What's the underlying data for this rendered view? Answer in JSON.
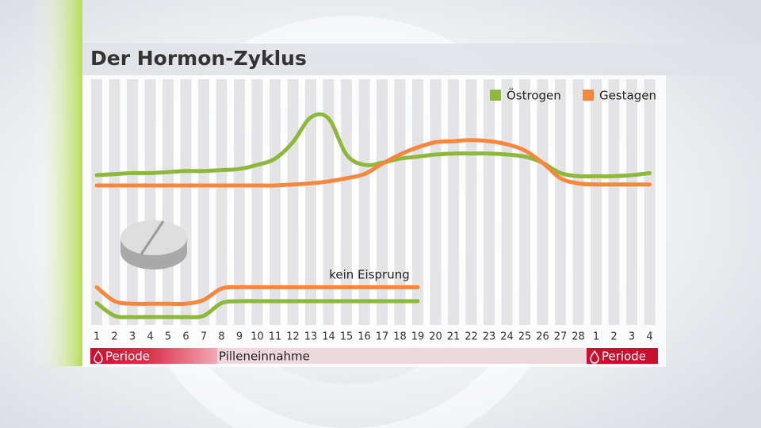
{
  "chart_data": [
    {
      "type": "line",
      "title": "Der Hormon-Zyklus",
      "categories": [
        "1",
        "2",
        "3",
        "4",
        "5",
        "6",
        "7",
        "8",
        "9",
        "10",
        "11",
        "12",
        "13",
        "14",
        "15",
        "16",
        "17",
        "18",
        "19",
        "20",
        "21",
        "22",
        "23",
        "24",
        "25",
        "26",
        "27",
        "28",
        "1",
        "2",
        "3",
        "4"
      ],
      "ylim": [
        0,
        100
      ],
      "series": [
        {
          "name": "Östrogen",
          "color": "#8db83c",
          "values": [
            30,
            31,
            32,
            32,
            33,
            34,
            34,
            35,
            36,
            40,
            46,
            62,
            86,
            85,
            50,
            40,
            42,
            46,
            48,
            50,
            51,
            51,
            51,
            50,
            48,
            42,
            32,
            29,
            29,
            29,
            30,
            32
          ]
        },
        {
          "name": "Gestagen",
          "color": "#f5873f",
          "values": [
            20,
            20,
            20,
            20,
            20,
            20,
            20,
            20,
            20,
            20,
            20,
            21,
            22,
            24,
            27,
            31,
            41,
            50,
            57,
            62,
            63,
            64,
            63,
            60,
            54,
            42,
            27,
            22,
            21,
            21,
            21,
            21
          ]
        }
      ]
    },
    {
      "type": "line",
      "annotation": "kein Eisprung",
      "ylim": [
        0,
        100
      ],
      "series": [
        {
          "color": "#f5873f",
          "values": [
            72,
            50,
            46,
            46,
            46,
            46,
            52,
            70,
            72,
            72,
            72,
            72,
            72,
            72,
            72,
            72,
            72,
            72,
            72,
            null,
            null,
            null,
            null,
            null,
            null,
            null,
            null,
            null,
            null,
            null,
            null,
            null
          ]
        },
        {
          "color": "#8db83c",
          "values": [
            47,
            27,
            25,
            25,
            25,
            25,
            27,
            47,
            50,
            50,
            50,
            50,
            50,
            50,
            50,
            50,
            50,
            50,
            50,
            null,
            null,
            null,
            null,
            null,
            null,
            null,
            null,
            null,
            null,
            null,
            null,
            null
          ]
        }
      ]
    }
  ],
  "periods": [
    {
      "label": "Periode"
    },
    {
      "label": "Pilleneinnahme"
    },
    {
      "label": "Periode"
    }
  ]
}
